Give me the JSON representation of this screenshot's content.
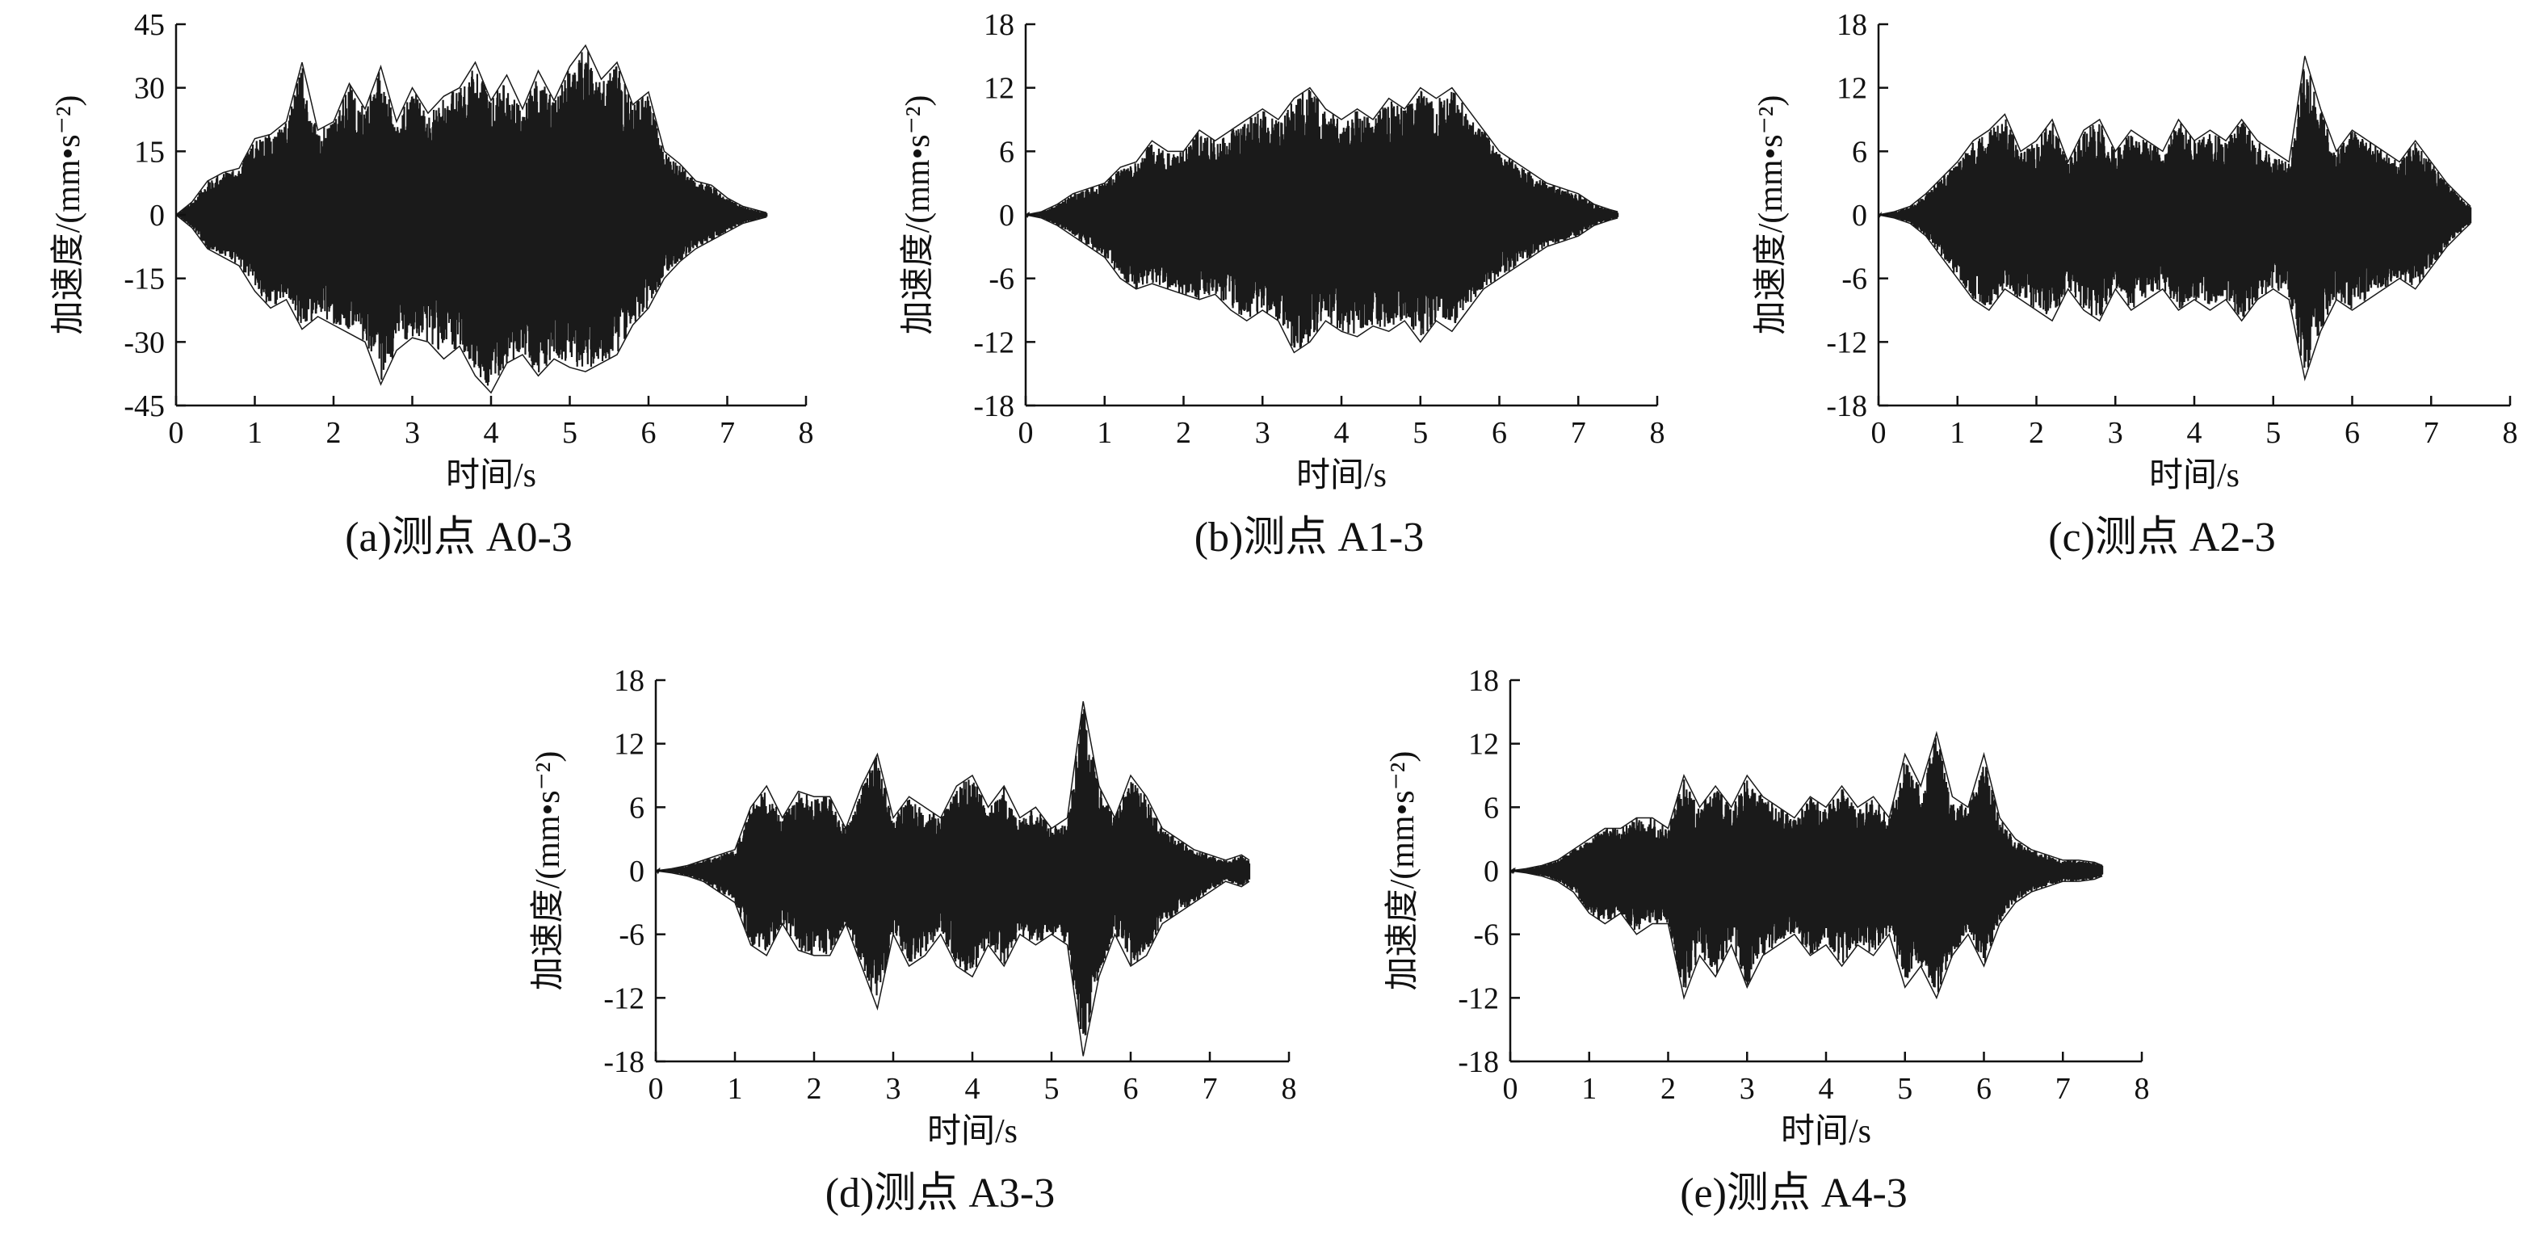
{
  "chart_data": [
    {
      "type": "line",
      "caption": "(a)测点 A0-3",
      "xlabel": "时间/s",
      "ylabel": "加速度/(mm•s⁻²)",
      "xlim": [
        0,
        8
      ],
      "ylim": [
        -45,
        45
      ],
      "xticks": [
        0,
        1,
        2,
        3,
        4,
        5,
        6,
        7,
        8
      ],
      "yticks": [
        45,
        30,
        15,
        0,
        -15,
        -30,
        -45
      ],
      "x": [
        0.0,
        0.2,
        0.4,
        0.6,
        0.8,
        1.0,
        1.2,
        1.4,
        1.6,
        1.8,
        2.0,
        2.2,
        2.4,
        2.6,
        2.8,
        3.0,
        3.2,
        3.4,
        3.6,
        3.8,
        4.0,
        4.2,
        4.4,
        4.6,
        4.8,
        5.0,
        5.2,
        5.4,
        5.6,
        5.8,
        6.0,
        6.2,
        6.4,
        6.6,
        6.8,
        7.0,
        7.2,
        7.4,
        7.5
      ],
      "upper": [
        0,
        3,
        8,
        10,
        11,
        18,
        19,
        22,
        36,
        20,
        22,
        31,
        25,
        35,
        22,
        30,
        24,
        28,
        30,
        36,
        27,
        33,
        25,
        34,
        27,
        35,
        40,
        32,
        36,
        26,
        29,
        15,
        12,
        8,
        7,
        4,
        2,
        1,
        0.5
      ],
      "lower": [
        0,
        -3,
        -8,
        -10,
        -12,
        -18,
        -22,
        -20,
        -27,
        -24,
        -26,
        -28,
        -30,
        -40,
        -32,
        -29,
        -30,
        -34,
        -31,
        -38,
        -42,
        -35,
        -33,
        -38,
        -34,
        -36,
        -37,
        -35,
        -33,
        -26,
        -22,
        -15,
        -11,
        -8,
        -6,
        -4,
        -2,
        -1,
        -0.5
      ]
    },
    {
      "type": "line",
      "caption": "(b)测点 A1-3",
      "xlabel": "时间/s",
      "ylabel": "加速度/(mm•s⁻²)",
      "xlim": [
        0,
        8
      ],
      "ylim": [
        -18,
        18
      ],
      "xticks": [
        0,
        1,
        2,
        3,
        4,
        5,
        6,
        7,
        8
      ],
      "yticks": [
        18,
        12,
        6,
        0,
        -6,
        -12,
        -18
      ],
      "x": [
        0.0,
        0.2,
        0.4,
        0.6,
        0.8,
        1.0,
        1.2,
        1.4,
        1.6,
        1.8,
        2.0,
        2.2,
        2.4,
        2.6,
        2.8,
        3.0,
        3.2,
        3.4,
        3.6,
        3.8,
        4.0,
        4.2,
        4.4,
        4.6,
        4.8,
        5.0,
        5.2,
        5.4,
        5.6,
        5.8,
        6.0,
        6.2,
        6.4,
        6.6,
        6.8,
        7.0,
        7.2,
        7.4,
        7.5
      ],
      "upper": [
        0,
        0.3,
        1,
        2,
        2.5,
        3,
        4.5,
        5,
        7,
        6,
        6,
        8,
        7,
        8,
        9,
        10,
        9,
        11,
        12,
        10,
        9,
        10,
        9,
        11,
        10,
        12,
        11,
        12,
        10,
        8,
        6,
        5,
        4,
        3,
        2.5,
        2,
        1,
        0.5,
        0.3
      ],
      "lower": [
        0,
        -0.3,
        -1,
        -2,
        -3,
        -4,
        -6,
        -7,
        -6.5,
        -7,
        -7.5,
        -8,
        -7.5,
        -9,
        -10,
        -9,
        -10,
        -13,
        -12,
        -10,
        -11,
        -11.5,
        -10.5,
        -11,
        -10,
        -12,
        -10,
        -11,
        -9,
        -7,
        -6,
        -5,
        -4,
        -3,
        -2.5,
        -2,
        -1,
        -0.5,
        -0.3
      ]
    },
    {
      "type": "line",
      "caption": "(c)测点 A2-3",
      "xlabel": "时间/s",
      "ylabel": "加速度/(mm•s⁻²)",
      "xlim": [
        0,
        8
      ],
      "ylim": [
        -18,
        18
      ],
      "xticks": [
        0,
        1,
        2,
        3,
        4,
        5,
        6,
        7,
        8
      ],
      "yticks": [
        18,
        12,
        6,
        0,
        -6,
        -12,
        -18
      ],
      "x": [
        0.0,
        0.2,
        0.4,
        0.6,
        0.8,
        1.0,
        1.2,
        1.4,
        1.6,
        1.8,
        2.0,
        2.2,
        2.4,
        2.6,
        2.8,
        3.0,
        3.2,
        3.4,
        3.6,
        3.8,
        4.0,
        4.2,
        4.4,
        4.6,
        4.8,
        5.0,
        5.2,
        5.4,
        5.6,
        5.8,
        6.0,
        6.2,
        6.4,
        6.6,
        6.8,
        7.0,
        7.2,
        7.4,
        7.5
      ],
      "upper": [
        0,
        0.3,
        0.8,
        2,
        3.5,
        5,
        7,
        8,
        9.5,
        6,
        7,
        9,
        5,
        8,
        9,
        6,
        8,
        7,
        6,
        9,
        7,
        8,
        7,
        9,
        7,
        6,
        5,
        15,
        10,
        6,
        8,
        7,
        6,
        5,
        7,
        5,
        3,
        1.5,
        0.8
      ],
      "lower": [
        0,
        -0.3,
        -0.8,
        -2,
        -4,
        -6,
        -8,
        -9,
        -7,
        -8,
        -9,
        -10,
        -7,
        -9,
        -10,
        -7,
        -9,
        -8,
        -7,
        -9,
        -8,
        -9,
        -8,
        -10,
        -8,
        -7,
        -8,
        -15.5,
        -11,
        -8,
        -9,
        -8,
        -7,
        -6,
        -7,
        -5,
        -3,
        -1.5,
        -0.8
      ]
    },
    {
      "type": "line",
      "caption": "(d)测点 A3-3",
      "xlabel": "时间/s",
      "ylabel": "加速度/(mm•s⁻²)",
      "xlim": [
        0,
        8
      ],
      "ylim": [
        -18,
        18
      ],
      "xticks": [
        0,
        1,
        2,
        3,
        4,
        5,
        6,
        7,
        8
      ],
      "yticks": [
        18,
        12,
        6,
        0,
        -6,
        -12,
        -18
      ],
      "x": [
        0.0,
        0.2,
        0.4,
        0.6,
        0.8,
        1.0,
        1.2,
        1.4,
        1.6,
        1.8,
        2.0,
        2.2,
        2.4,
        2.6,
        2.8,
        3.0,
        3.2,
        3.4,
        3.6,
        3.8,
        4.0,
        4.2,
        4.4,
        4.6,
        4.8,
        5.0,
        5.2,
        5.4,
        5.6,
        5.8,
        6.0,
        6.2,
        6.4,
        6.6,
        6.8,
        7.0,
        7.2,
        7.4,
        7.5
      ],
      "upper": [
        0,
        0.2,
        0.5,
        1,
        1.5,
        2,
        6,
        8,
        5,
        7.5,
        7,
        7,
        4,
        8,
        11,
        5,
        7,
        6,
        5,
        8,
        9,
        6,
        8,
        5,
        6,
        4,
        5,
        16,
        8,
        5,
        9,
        7,
        4,
        3,
        2,
        1.5,
        1,
        1.5,
        1
      ],
      "lower": [
        0,
        -0.2,
        -0.5,
        -1,
        -2,
        -3,
        -7,
        -8,
        -5,
        -7.5,
        -8,
        -8,
        -5,
        -9,
        -13,
        -6,
        -9,
        -8,
        -6,
        -9,
        -10,
        -7,
        -9,
        -6,
        -7,
        -6,
        -7,
        -17.5,
        -10,
        -6,
        -9,
        -8,
        -5,
        -4,
        -3,
        -2,
        -1,
        -1.5,
        -1
      ]
    },
    {
      "type": "line",
      "caption": "(e)测点 A4-3",
      "xlabel": "时间/s",
      "ylabel": "加速度/(mm•s⁻²)",
      "xlim": [
        0,
        8
      ],
      "ylim": [
        -18,
        18
      ],
      "xticks": [
        0,
        1,
        2,
        3,
        4,
        5,
        6,
        7,
        8
      ],
      "yticks": [
        18,
        12,
        6,
        0,
        -6,
        -12,
        -18
      ],
      "x": [
        0.0,
        0.2,
        0.4,
        0.6,
        0.8,
        1.0,
        1.2,
        1.4,
        1.6,
        1.8,
        2.0,
        2.2,
        2.4,
        2.6,
        2.8,
        3.0,
        3.2,
        3.4,
        3.6,
        3.8,
        4.0,
        4.2,
        4.4,
        4.6,
        4.8,
        5.0,
        5.2,
        5.4,
        5.6,
        5.8,
        6.0,
        6.2,
        6.4,
        6.6,
        6.8,
        7.0,
        7.2,
        7.4,
        7.5
      ],
      "upper": [
        0,
        0.2,
        0.5,
        1,
        2,
        3,
        4,
        4,
        5,
        5,
        4,
        9,
        6,
        8,
        6,
        9,
        7,
        6,
        5,
        7,
        6,
        8,
        6,
        7,
        5,
        11,
        8,
        13,
        7,
        6,
        11,
        5,
        3,
        2,
        1.5,
        1,
        1,
        0.8,
        0.5
      ],
      "lower": [
        0,
        -0.2,
        -0.5,
        -1,
        -2,
        -4,
        -5,
        -4,
        -6,
        -5,
        -5,
        -12,
        -8,
        -10,
        -7,
        -11,
        -8,
        -7,
        -6,
        -8,
        -7,
        -9,
        -7,
        -8,
        -6,
        -11,
        -9,
        -12,
        -8,
        -6,
        -9,
        -5,
        -3,
        -2,
        -1.5,
        -1,
        -1,
        -0.8,
        -0.5
      ]
    }
  ]
}
